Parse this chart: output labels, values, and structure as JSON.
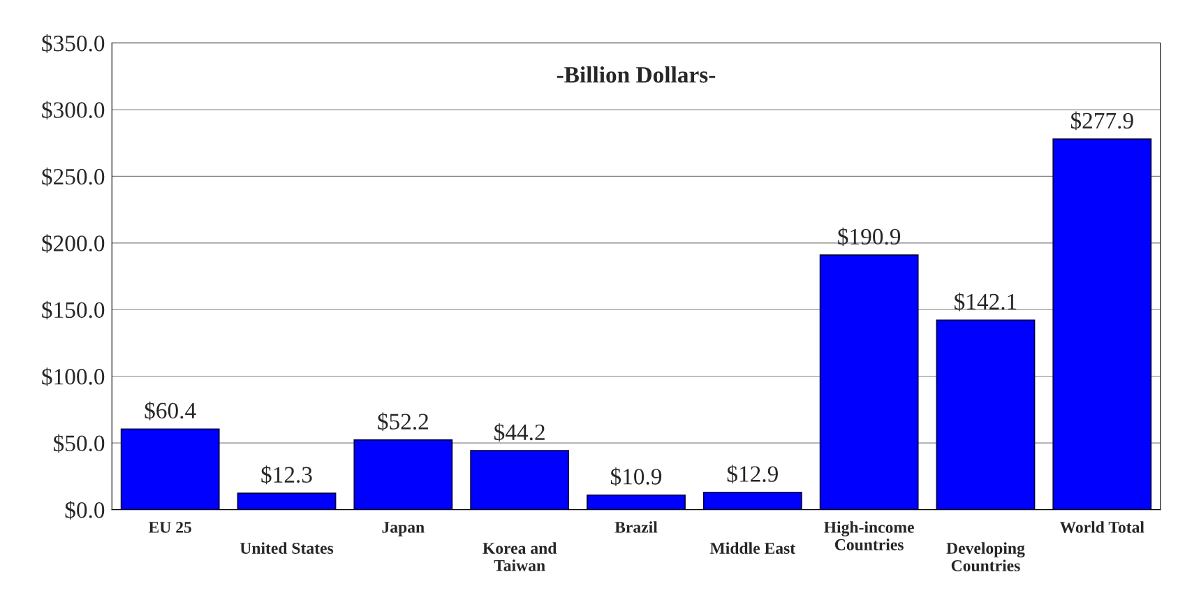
{
  "chart_data": {
    "type": "bar",
    "title": "-Billion Dollars-",
    "categories": [
      "EU 25",
      "United States",
      "Japan",
      "Korea and\nTaiwan",
      "Brazil",
      "Middle East",
      "High-income\nCountries",
      "Developing\nCountries",
      "World Total"
    ],
    "values": [
      60.4,
      12.3,
      52.2,
      44.2,
      10.9,
      12.9,
      190.9,
      142.1,
      277.9
    ],
    "color": "#0000ff",
    "value_labels": [
      "$60.4",
      "$12.3",
      "$52.2",
      "$44.2",
      "$10.9",
      "$12.9",
      "$190.9",
      "$142.1",
      "$277.9"
    ],
    "ylim": [
      0,
      350
    ],
    "yticks": [
      {
        "value": 0,
        "label": "$0.0"
      },
      {
        "value": 50,
        "label": "$50.0"
      },
      {
        "value": 100,
        "label": "$100.0"
      },
      {
        "value": 150,
        "label": "$150.0"
      },
      {
        "value": 200,
        "label": "$200.0"
      },
      {
        "value": 250,
        "label": "$250.0"
      },
      {
        "value": 300,
        "label": "$300.0"
      },
      {
        "value": 350,
        "label": "$350.0"
      }
    ],
    "grid": "y",
    "legend": false
  }
}
